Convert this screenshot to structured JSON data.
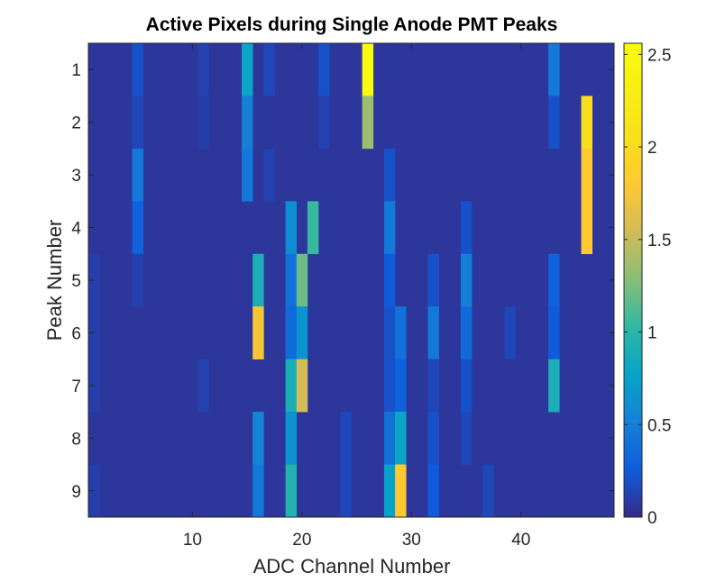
{
  "chart_data": {
    "type": "heatmap",
    "title": "Active Pixels during Single Anode PMT Peaks",
    "xlabel": "ADC Channel Number",
    "ylabel": "Peak Number",
    "x_range": [
      0.5,
      48.5
    ],
    "y_range": [
      0.5,
      9.5
    ],
    "x_ticks": [
      10,
      20,
      30,
      40
    ],
    "y_ticks": [
      1,
      2,
      3,
      4,
      5,
      6,
      7,
      8,
      9
    ],
    "colorbar": {
      "range": [
        0,
        2.56
      ],
      "ticks": [
        0,
        0.5,
        1,
        1.5,
        2,
        2.5
      ],
      "tick_labels": [
        "0",
        "0.5",
        "1",
        "1.5",
        "2",
        "2.5"
      ],
      "colormap": "parula"
    },
    "background_value": 0.06,
    "cells": [
      {
        "x": 5,
        "y": 1,
        "v": 0.2
      },
      {
        "x": 11,
        "y": 1,
        "v": 0.12
      },
      {
        "x": 15,
        "y": 1,
        "v": 0.8
      },
      {
        "x": 17,
        "y": 1,
        "v": 0.15
      },
      {
        "x": 22,
        "y": 1,
        "v": 0.2
      },
      {
        "x": 26,
        "y": 1,
        "v": 2.56
      },
      {
        "x": 43,
        "y": 1,
        "v": 0.45
      },
      {
        "x": 5,
        "y": 2,
        "v": 0.15
      },
      {
        "x": 11,
        "y": 2,
        "v": 0.1
      },
      {
        "x": 15,
        "y": 2,
        "v": 0.5
      },
      {
        "x": 22,
        "y": 2,
        "v": 0.12
      },
      {
        "x": 26,
        "y": 2,
        "v": 1.35
      },
      {
        "x": 43,
        "y": 2,
        "v": 0.2
      },
      {
        "x": 46,
        "y": 2,
        "v": 2.0
      },
      {
        "x": 5,
        "y": 3,
        "v": 0.45
      },
      {
        "x": 15,
        "y": 3,
        "v": 0.45
      },
      {
        "x": 17,
        "y": 3,
        "v": 0.12
      },
      {
        "x": 28,
        "y": 3,
        "v": 0.2
      },
      {
        "x": 46,
        "y": 3,
        "v": 1.8
      },
      {
        "x": 5,
        "y": 4,
        "v": 0.3
      },
      {
        "x": 19,
        "y": 4,
        "v": 0.6
      },
      {
        "x": 21,
        "y": 4,
        "v": 1.05
      },
      {
        "x": 28,
        "y": 4,
        "v": 0.45
      },
      {
        "x": 35,
        "y": 4,
        "v": 0.2
      },
      {
        "x": 46,
        "y": 4,
        "v": 1.8
      },
      {
        "x": 1,
        "y": 5,
        "v": 0.1
      },
      {
        "x": 5,
        "y": 5,
        "v": 0.12
      },
      {
        "x": 16,
        "y": 5,
        "v": 0.9
      },
      {
        "x": 19,
        "y": 5,
        "v": 0.4
      },
      {
        "x": 20,
        "y": 5,
        "v": 1.2
      },
      {
        "x": 28,
        "y": 5,
        "v": 0.25
      },
      {
        "x": 32,
        "y": 5,
        "v": 0.2
      },
      {
        "x": 35,
        "y": 5,
        "v": 0.5
      },
      {
        "x": 43,
        "y": 5,
        "v": 0.3
      },
      {
        "x": 1,
        "y": 6,
        "v": 0.1
      },
      {
        "x": 16,
        "y": 6,
        "v": 1.75
      },
      {
        "x": 19,
        "y": 6,
        "v": 0.35
      },
      {
        "x": 20,
        "y": 6,
        "v": 0.65
      },
      {
        "x": 28,
        "y": 6,
        "v": 0.2
      },
      {
        "x": 29,
        "y": 6,
        "v": 0.4
      },
      {
        "x": 32,
        "y": 6,
        "v": 0.45
      },
      {
        "x": 35,
        "y": 6,
        "v": 0.35
      },
      {
        "x": 39,
        "y": 6,
        "v": 0.15
      },
      {
        "x": 43,
        "y": 6,
        "v": 0.25
      },
      {
        "x": 1,
        "y": 7,
        "v": 0.1
      },
      {
        "x": 11,
        "y": 7,
        "v": 0.12
      },
      {
        "x": 19,
        "y": 7,
        "v": 0.9
      },
      {
        "x": 20,
        "y": 7,
        "v": 1.55
      },
      {
        "x": 28,
        "y": 7,
        "v": 0.2
      },
      {
        "x": 29,
        "y": 7,
        "v": 0.3
      },
      {
        "x": 32,
        "y": 7,
        "v": 0.15
      },
      {
        "x": 35,
        "y": 7,
        "v": 0.2
      },
      {
        "x": 43,
        "y": 7,
        "v": 0.9
      },
      {
        "x": 16,
        "y": 8,
        "v": 0.55
      },
      {
        "x": 19,
        "y": 8,
        "v": 0.65
      },
      {
        "x": 24,
        "y": 8,
        "v": 0.15
      },
      {
        "x": 28,
        "y": 8,
        "v": 0.4
      },
      {
        "x": 29,
        "y": 8,
        "v": 0.8
      },
      {
        "x": 32,
        "y": 8,
        "v": 0.2
      },
      {
        "x": 35,
        "y": 8,
        "v": 0.15
      },
      {
        "x": 1,
        "y": 9,
        "v": 0.1
      },
      {
        "x": 16,
        "y": 9,
        "v": 0.45
      },
      {
        "x": 19,
        "y": 9,
        "v": 0.95
      },
      {
        "x": 24,
        "y": 9,
        "v": 0.15
      },
      {
        "x": 28,
        "y": 9,
        "v": 0.75
      },
      {
        "x": 29,
        "y": 9,
        "v": 1.8
      },
      {
        "x": 32,
        "y": 9,
        "v": 0.25
      },
      {
        "x": 37,
        "y": 9,
        "v": 0.15
      }
    ]
  }
}
